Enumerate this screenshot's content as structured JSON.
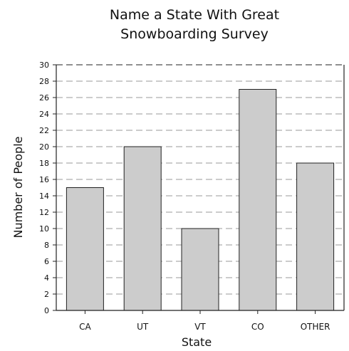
{
  "chart_data": {
    "type": "bar",
    "title": [
      "Name a State With Great",
      "Snowboarding Survey"
    ],
    "xlabel": "State",
    "ylabel": "Number of People",
    "categories": [
      "CA",
      "UT",
      "VT",
      "CO",
      "OTHER"
    ],
    "values": [
      15,
      20,
      10,
      27,
      18
    ],
    "ylim": [
      0,
      30
    ],
    "yticks": [
      0,
      2,
      4,
      6,
      8,
      10,
      12,
      14,
      16,
      18,
      20,
      22,
      24,
      26,
      28,
      30
    ],
    "ytick_labels": [
      "0",
      "2",
      "4",
      "6",
      "8",
      "10",
      "12",
      "14",
      "16",
      "18",
      "20",
      "22",
      "24",
      "26",
      "28",
      "30"
    ],
    "grid": "dashed horizontal",
    "legend": "none",
    "bar_color": "#cccccc",
    "bar_edge_color": "#222222",
    "grid_color": "#999999"
  }
}
